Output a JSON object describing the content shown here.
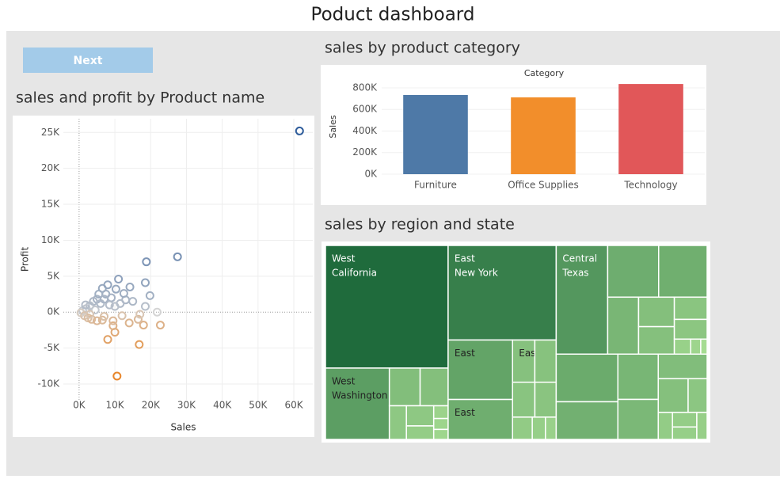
{
  "header": {
    "title": "Poduct dashboard"
  },
  "button": {
    "label": "Next"
  },
  "chart_data": [
    {
      "type": "scatter",
      "title": "sales and profit by Product name",
      "x_label": "Sales",
      "y_label": "Profit",
      "x": [
        61600,
        27500,
        18800,
        11000,
        18500,
        14200,
        19800,
        10600,
        16800,
        8000,
        10000,
        22700,
        18000,
        9500,
        21800,
        18500,
        15000,
        13000,
        6500,
        8000,
        10300,
        7500,
        5000,
        4000,
        3000,
        2000,
        1000,
        500,
        1500,
        2500,
        3500,
        5000,
        6500,
        7000,
        4500,
        6000,
        9000,
        11500,
        12500,
        16500,
        17000,
        14000,
        12000,
        8500,
        10000,
        3000,
        1800,
        5500,
        7000,
        9500
      ],
      "y": [
        25200,
        7700,
        7000,
        4600,
        4100,
        3500,
        2300,
        -8900,
        -4500,
        -3800,
        -2800,
        -1800,
        -1800,
        -1900,
        0,
        800,
        1500,
        1700,
        3300,
        3800,
        3200,
        2500,
        1800,
        1500,
        900,
        500,
        200,
        -100,
        -500,
        -800,
        -1000,
        -1200,
        -1100,
        -600,
        300,
        1200,
        2000,
        1200,
        2600,
        -1000,
        -300,
        -1500,
        -500,
        1000,
        800,
        -300,
        1000,
        2500,
        1800,
        -1200
      ],
      "xlim": [
        -4400,
        65300
      ],
      "ylim": [
        -12200,
        26900
      ],
      "xticks": [
        {
          "value": 0,
          "label": "0K"
        },
        {
          "value": 10000,
          "label": "10K"
        },
        {
          "value": 20000,
          "label": "20K"
        },
        {
          "value": 30000,
          "label": "30K"
        },
        {
          "value": 40000,
          "label": "40K"
        },
        {
          "value": 50000,
          "label": "50K"
        },
        {
          "value": 60000,
          "label": "60K"
        }
      ],
      "yticks": [
        {
          "value": -10000,
          "label": "-10K"
        },
        {
          "value": -5000,
          "label": "-5K"
        },
        {
          "value": 0,
          "label": "0K"
        },
        {
          "value": 5000,
          "label": "5K"
        },
        {
          "value": 10000,
          "label": "10K"
        },
        {
          "value": 15000,
          "label": "15K"
        },
        {
          "value": 20000,
          "label": "20K"
        },
        {
          "value": 25000,
          "label": "25K"
        }
      ],
      "grid": true,
      "colors": {
        "negative": "#e8862a",
        "neutral": "#d4d4d4",
        "positive": "#2f5d9b"
      }
    },
    {
      "type": "bar",
      "title": "sales by product category",
      "header": "Category",
      "y_label": "Sales",
      "categories": [
        "Furniture",
        "Office Supplies",
        "Technology"
      ],
      "values": [
        734000,
        712000,
        836000
      ],
      "colors": [
        "#4e79a7",
        "#f28e2b",
        "#e15759"
      ],
      "ylim": [
        0,
        844000
      ],
      "yticks": [
        {
          "value": 0,
          "label": "0K"
        },
        {
          "value": 200000,
          "label": "200K"
        },
        {
          "value": 400000,
          "label": "400K"
        },
        {
          "value": 600000,
          "label": "600K"
        },
        {
          "value": 800000,
          "label": "800K"
        }
      ],
      "grid": true
    },
    {
      "type": "treemap",
      "title": "sales by region and state",
      "color_range": [
        "#a6dc92",
        "#1f6b3c"
      ],
      "groups": [
        {
          "items": [
            {
              "labels": [
                "West",
                "California"
              ],
              "value": 457688
            },
            {
              "labels": [
                "West",
                "Washington"
              ],
              "value": 138641
            },
            {
              "labels": null,
              "value": 35282
            },
            {
              "labels": null,
              "value": 32108
            },
            {
              "labels": null,
              "value": 17431
            },
            {
              "labels": null,
              "value": 16729
            },
            {
              "labels": null,
              "value": 11220
            },
            {
              "labels": null,
              "value": 5589
            },
            {
              "labels": null,
              "value": 4784
            },
            {
              "labels": null,
              "value": 4382
            }
          ]
        },
        {
          "items": [
            {
              "labels": [
                "East",
                "New York"
              ],
              "value": 310876
            },
            {
              "labels": [
                "East"
              ],
              "value": 116512
            },
            {
              "labels": [
                "East"
              ],
              "value": 78258
            },
            {
              "labels": [
                "East"
              ],
              "value": 28634
            },
            {
              "labels": null,
              "value": 27451
            },
            {
              "labels": null,
              "value": 23706
            },
            {
              "labels": null,
              "value": 22628
            },
            {
              "labels": null,
              "value": 13384
            },
            {
              "labels": null,
              "value": 8929
            },
            {
              "labels": null,
              "value": 7293
            }
          ]
        },
        {
          "items": [
            {
              "labels": [
                "Central",
                "Texas"
              ],
              "value": 170188
            },
            {
              "labels": null,
              "value": 80166
            },
            {
              "labels": null,
              "value": 76270
            },
            {
              "labels": null,
              "value": 53555
            },
            {
              "labels": null,
              "value": 32115
            },
            {
              "labels": null,
              "value": 29863
            },
            {
              "labels": null,
              "value": 22205
            },
            {
              "labels": null,
              "value": 19683
            },
            {
              "labels": null,
              "value": 7465
            },
            {
              "labels": null,
              "value": 4580
            },
            {
              "labels": null,
              "value": 2914
            }
          ]
        },
        {
          "items": [
            {
              "labels": null,
              "value": 89474
            },
            {
              "labels": null,
              "value": 70637
            },
            {
              "labels": null,
              "value": 55603
            },
            {
              "labels": null,
              "value": 49096
            },
            {
              "labels": null,
              "value": 36592
            },
            {
              "labels": null,
              "value": 30662
            },
            {
              "labels": null,
              "value": 19511
            },
            {
              "labels": null,
              "value": 11678
            },
            {
              "labels": null,
              "value": 10771
            },
            {
              "labels": null,
              "value": 9217
            },
            {
              "labels": null,
              "value": 8482
            }
          ]
        }
      ]
    }
  ]
}
